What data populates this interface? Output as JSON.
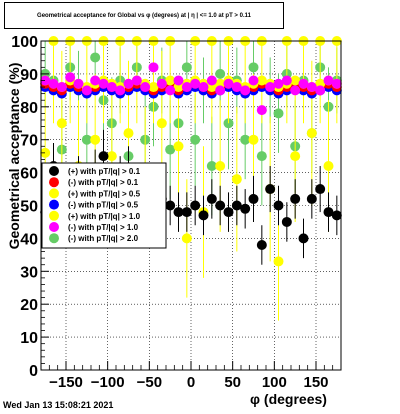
{
  "chart_data": {
    "type": "scatter",
    "title": "Geometrical acceptance for Global vs φ (degrees) at | η | <= 1.0 at pT > 0.11",
    "xlabel": "φ (degrees)",
    "ylabel": "Geometrical acceptance (%)",
    "xlim": [
      -180,
      180
    ],
    "ylim": [
      0,
      100
    ],
    "x_ticks": [
      -150,
      -100,
      -50,
      0,
      50,
      100,
      150
    ],
    "y_ticks": [
      0,
      10,
      20,
      30,
      40,
      50,
      60,
      70,
      80,
      90,
      100
    ],
    "grid": true,
    "legend_position": "middle-left",
    "series": [
      {
        "name": "(+) with pT/|q| > 0.1",
        "color": "#000000",
        "x": [
          -175,
          -165,
          -155,
          -145,
          -135,
          -125,
          -115,
          -105,
          -95,
          -85,
          -75,
          -65,
          -55,
          -45,
          -35,
          -25,
          -15,
          -5,
          5,
          15,
          25,
          35,
          45,
          55,
          65,
          75,
          85,
          95,
          105,
          115,
          125,
          135,
          145,
          155,
          165,
          175
        ],
        "y": [
          48,
          62,
          55,
          50,
          58,
          52,
          60,
          65,
          50,
          58,
          60,
          55,
          50,
          54,
          52,
          50,
          48,
          48,
          50,
          47,
          52,
          50,
          48,
          50,
          49,
          52,
          38,
          55,
          50,
          45,
          52,
          40,
          52,
          55,
          48,
          47
        ],
        "y_err": [
          6,
          7,
          6,
          6,
          7,
          6,
          7,
          8,
          6,
          7,
          8,
          6,
          6,
          6,
          6,
          6,
          6,
          6,
          6,
          6,
          6,
          6,
          6,
          6,
          6,
          7,
          6,
          7,
          6,
          6,
          6,
          6,
          6,
          7,
          6,
          6
        ]
      },
      {
        "name": "(-) with pT/|q| > 0.1",
        "color": "#ff0000",
        "x": [
          -175,
          -165,
          -155,
          -145,
          -135,
          -125,
          -115,
          -105,
          -95,
          -85,
          -75,
          -65,
          -55,
          -45,
          -35,
          -25,
          -15,
          -5,
          5,
          15,
          25,
          35,
          45,
          55,
          65,
          75,
          85,
          95,
          105,
          115,
          125,
          135,
          145,
          155,
          165,
          175
        ],
        "y": [
          87,
          86,
          85,
          87,
          86,
          85,
          86,
          87,
          86,
          85,
          86,
          87,
          86,
          85,
          86,
          87,
          85,
          86,
          87,
          86,
          85,
          86,
          87,
          86,
          85,
          86,
          87,
          86,
          85,
          86,
          87,
          86,
          85,
          86,
          87,
          86
        ]
      },
      {
        "name": "(+) with pT/|q| > 0.5",
        "color": "#ffff00",
        "x": [
          -175,
          -165,
          -155,
          -145,
          -135,
          -125,
          -115,
          -105,
          -95,
          -85,
          -75,
          -65,
          -55,
          -45,
          -35,
          -25,
          -15,
          -5,
          5,
          15,
          25,
          35,
          45,
          55,
          65,
          75,
          85,
          95,
          105,
          115,
          125,
          135,
          145,
          155,
          165,
          175
        ],
        "y": [
          88,
          87,
          86,
          88,
          87,
          86,
          87,
          88,
          87,
          86,
          87,
          88,
          87,
          86,
          87,
          88,
          86,
          87,
          88,
          87,
          86,
          87,
          88,
          87,
          86,
          87,
          88,
          87,
          86,
          87,
          88,
          87,
          86,
          87,
          88,
          87
        ]
      },
      {
        "name": "(-) with pT/|q| > 0.5",
        "color": "#0000ff",
        "x": [
          -175,
          -165,
          -155,
          -145,
          -135,
          -125,
          -115,
          -105,
          -95,
          -85,
          -75,
          -65,
          -55,
          -45,
          -35,
          -25,
          -15,
          -5,
          5,
          15,
          25,
          35,
          45,
          55,
          65,
          75,
          85,
          95,
          105,
          115,
          125,
          135,
          145,
          155,
          165,
          175
        ],
        "y": [
          86,
          85,
          84,
          86,
          85,
          84,
          85,
          86,
          85,
          84,
          85,
          86,
          85,
          84,
          85,
          86,
          84,
          85,
          86,
          85,
          84,
          85,
          86,
          85,
          84,
          85,
          86,
          85,
          84,
          85,
          86,
          85,
          84,
          85,
          86,
          85
        ]
      },
      {
        "name": "(+) with pT/|q| > 1.0",
        "color": "#ffff00",
        "x": [
          -175,
          -165,
          -155,
          -145,
          -135,
          -125,
          -115,
          -105,
          -95,
          -85,
          -75,
          -65,
          -55,
          -45,
          -35,
          -25,
          -15,
          -5,
          5,
          15,
          25,
          35,
          45,
          55,
          65,
          75,
          85,
          95,
          105,
          115,
          125,
          135,
          145,
          155,
          165,
          175
        ],
        "y": [
          66,
          100,
          75,
          100,
          62,
          100,
          70,
          100,
          65,
          100,
          72,
          100,
          60,
          100,
          75,
          100,
          68,
          40,
          100,
          48,
          100,
          62,
          100,
          58,
          100,
          70,
          100,
          55,
          33,
          100,
          65,
          100,
          72,
          100,
          62,
          100
        ],
        "y_err": [
          20,
          25,
          22,
          25,
          20,
          25,
          20,
          25,
          22,
          25,
          22,
          25,
          20,
          25,
          22,
          25,
          20,
          18,
          25,
          20,
          25,
          20,
          25,
          22,
          25,
          20,
          25,
          22,
          18,
          25,
          20,
          25,
          22,
          25,
          20,
          25
        ]
      },
      {
        "name": "(-) with pT/|q| > 1.0",
        "color": "#ff00ff",
        "x": [
          -175,
          -165,
          -155,
          -145,
          -135,
          -125,
          -115,
          -105,
          -95,
          -85,
          -75,
          -65,
          -55,
          -45,
          -35,
          -25,
          -15,
          -5,
          5,
          15,
          25,
          35,
          45,
          55,
          65,
          75,
          85,
          95,
          105,
          115,
          125,
          135,
          145,
          155,
          165,
          175
        ],
        "y": [
          88,
          87,
          86,
          89,
          87,
          85,
          88,
          87,
          86,
          85,
          87,
          88,
          86,
          92,
          87,
          85,
          88,
          86,
          87,
          86,
          88,
          85,
          87,
          86,
          85,
          88,
          79,
          86,
          87,
          88,
          85,
          87,
          86,
          85,
          88,
          87
        ]
      },
      {
        "name": "(-) with pT/|q| > 2.0",
        "color": "#66cc66",
        "x": [
          -175,
          -165,
          -155,
          -145,
          -135,
          -125,
          -115,
          -105,
          -95,
          -85,
          -75,
          -65,
          -55,
          -45,
          -35,
          -25,
          -15,
          -5,
          5,
          15,
          25,
          35,
          45,
          55,
          65,
          75,
          85,
          95,
          105,
          115,
          125,
          135,
          145,
          155,
          165,
          175
        ],
        "y": [
          90,
          88,
          67,
          92,
          85,
          70,
          95,
          82,
          75,
          88,
          65,
          92,
          70,
          80,
          88,
          67,
          75,
          92,
          70,
          85,
          62,
          90,
          75,
          88,
          70,
          92,
          65,
          85,
          78,
          90,
          68,
          88,
          72,
          92,
          80,
          88
        ],
        "y_err": [
          10,
          12,
          15,
          10,
          12,
          15,
          8,
          12,
          14,
          10,
          15,
          8,
          14,
          12,
          10,
          15,
          12,
          8,
          14,
          10,
          15,
          10,
          14,
          10,
          12,
          8,
          15,
          10,
          12,
          10,
          14,
          10,
          12,
          8,
          12,
          10
        ]
      }
    ]
  },
  "footer": {
    "date": "Wed Jan 13 15:08:21 2021"
  }
}
